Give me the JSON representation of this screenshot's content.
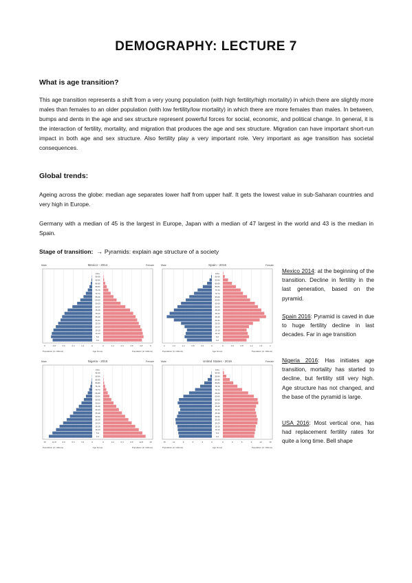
{
  "title": "DEMOGRAPHY: LECTURE 7",
  "section1": {
    "heading": "What is age transition?",
    "body": "This age transition represents a shift from a very young population (with high fertility/high mortality) in which there are slightly more males than females to an older population (with low fertility/low mortality) in which there are more females than males. In between, bumps and dents in the age and sex structure represent powerful forces for social, economic, and political change. In general, it is the interaction of fertility, mortality, and migration that produces the age and sex structure. Migration can have important short-run impact in both age and sex structure. Also fertility play a very important role. Very important as age transition has societal consequences."
  },
  "section2": {
    "heading": "Global trends:",
    "para1": "Ageing across the globe: median age separates lower half from upper half. It gets the lowest value in sub-Saharan countries and very high in Europe.",
    "para2": "Germany with a median of 45 is the largest in Europe, Japan with a median of 47 largest in the world and 43 is the median in Spain."
  },
  "stage": {
    "label": "Stage of transition:",
    "arrow": "→",
    "text": "Pyramids: explain age structure of a society"
  },
  "notes": [
    {
      "country": "Mexico 2014",
      "text": ": at the beginning of the transition. Decline in fertility in the last generation, based on the pyramid."
    },
    {
      "country": "Spain 2016",
      "text": ": Pyramid is caved in due to huge fertility decline in last decades. Far in age transition"
    },
    {
      "country": "Nigeria 2016",
      "text": ": Has initiates age transition, mortality has started to decline, but fertility still very high. Age structure has not changed, and the base of the pyramid is large."
    },
    {
      "country": "USA 2016",
      "text": ": Most vertical one, has had replacement fertility rates for quite a long time. Bell shape"
    }
  ],
  "colors": {
    "male": "#4a6d9e",
    "female": "#e8868c"
  },
  "chart_data": [
    {
      "type": "bar",
      "title": "Mexico - 2014",
      "male_label": "Male",
      "female_label": "Female",
      "xlabel_left": "Population (in millions)",
      "xlabel_center": "Age Group",
      "xlabel_right": "Population (in millions)",
      "xticks": [
        "6",
        "4.8",
        "3.6",
        "2.4",
        "1.2",
        "0",
        "0",
        "1.2",
        "2.4",
        "3.6",
        "4.8",
        "6"
      ],
      "xlim": [
        0,
        6
      ],
      "categories": [
        "100+",
        "95-99",
        "90-94",
        "85-89",
        "80-84",
        "75-79",
        "70-74",
        "65-69",
        "60-64",
        "55-59",
        "50-54",
        "45-49",
        "40-44",
        "35-39",
        "30-34",
        "25-29",
        "20-24",
        "15-19",
        "10-14",
        "5-9",
        "0-4"
      ],
      "male": [
        0.01,
        0.03,
        0.08,
        0.18,
        0.35,
        0.55,
        0.8,
        1.1,
        1.5,
        1.9,
        2.5,
        3.1,
        3.5,
        3.8,
        4.0,
        4.3,
        4.6,
        4.9,
        5.1,
        5.2,
        5.0
      ],
      "female": [
        0.02,
        0.05,
        0.12,
        0.25,
        0.45,
        0.65,
        0.95,
        1.3,
        1.7,
        2.2,
        2.8,
        3.4,
        3.8,
        4.1,
        4.3,
        4.5,
        4.7,
        4.9,
        5.0,
        5.1,
        4.9
      ]
    },
    {
      "type": "bar",
      "title": "Spain - 2016",
      "male_label": "Male",
      "female_label": "Female",
      "xlabel_left": "Population (in millions)",
      "xlabel_center": "Age Group",
      "xlabel_right": "Population (in millions)",
      "xticks": [
        "2",
        "1.6",
        "1.2",
        "0.8",
        "0.4",
        "0",
        "0",
        "0.4",
        "0.8",
        "1.2",
        "1.6",
        "2"
      ],
      "xlim": [
        0,
        2
      ],
      "categories": [
        "100+",
        "95-99",
        "90-94",
        "85-89",
        "80-84",
        "75-79",
        "70-74",
        "65-69",
        "60-64",
        "55-59",
        "50-54",
        "45-49",
        "40-44",
        "35-39",
        "30-34",
        "25-29",
        "20-24",
        "15-19",
        "10-14",
        "5-9",
        "0-4"
      ],
      "male": [
        0.005,
        0.03,
        0.1,
        0.2,
        0.38,
        0.6,
        0.75,
        0.95,
        1.1,
        1.3,
        1.45,
        1.6,
        1.78,
        1.9,
        1.6,
        1.3,
        1.15,
        1.05,
        1.1,
        1.15,
        1.05
      ],
      "female": [
        0.02,
        0.08,
        0.22,
        0.38,
        0.55,
        0.75,
        0.85,
        1.02,
        1.15,
        1.35,
        1.48,
        1.62,
        1.75,
        1.82,
        1.55,
        1.27,
        1.1,
        1.0,
        1.05,
        1.1,
        1.0
      ]
    },
    {
      "type": "bar",
      "title": "Nigeria - 2016",
      "male_label": "Male",
      "female_label": "Female",
      "xlabel_left": "Population (in millions)",
      "xlabel_center": "Age Group",
      "xlabel_right": "Population (in millions)",
      "xticks": [
        "16",
        "12.8",
        "9.6",
        "6.4",
        "3.2",
        "0",
        "0",
        "3.2",
        "6.4",
        "9.6",
        "12.8",
        "16"
      ],
      "xlim": [
        0,
        16
      ],
      "categories": [
        "100+",
        "95-99",
        "90-94",
        "85-89",
        "80-84",
        "75-79",
        "70-74",
        "65-69",
        "60-64",
        "55-59",
        "50-54",
        "45-49",
        "40-44",
        "35-39",
        "30-34",
        "25-29",
        "20-24",
        "15-19",
        "10-14",
        "5-9",
        "0-4"
      ],
      "male": [
        0.005,
        0.02,
        0.05,
        0.12,
        0.3,
        0.6,
        1.0,
        1.5,
        2.1,
        2.8,
        3.6,
        4.5,
        5.4,
        6.4,
        7.5,
        8.6,
        9.8,
        11.0,
        12.2,
        13.4,
        14.6
      ],
      "female": [
        0.005,
        0.02,
        0.06,
        0.14,
        0.33,
        0.65,
        1.05,
        1.55,
        2.1,
        2.75,
        3.5,
        4.4,
        5.3,
        6.3,
        7.4,
        8.5,
        9.6,
        10.8,
        12.0,
        13.2,
        14.3
      ]
    },
    {
      "type": "bar",
      "title": "United States - 2016",
      "male_label": "Male",
      "female_label": "Female",
      "xlabel_left": "Population (in millions)",
      "xlabel_center": "Age Group",
      "xlabel_right": "Population (in millions)",
      "xticks": [
        "15",
        "12",
        "9",
        "6",
        "3",
        "0",
        "0",
        "3",
        "6",
        "9",
        "12",
        "15"
      ],
      "xlim": [
        0,
        15
      ],
      "categories": [
        "100+",
        "95-99",
        "90-94",
        "85-89",
        "80-84",
        "75-79",
        "70-74",
        "65-69",
        "60-64",
        "55-59",
        "50-54",
        "45-49",
        "40-44",
        "35-39",
        "30-34",
        "25-29",
        "20-24",
        "15-19",
        "10-14",
        "5-9",
        "0-4"
      ],
      "male": [
        0.02,
        0.1,
        0.5,
        1.3,
        2.4,
        3.7,
        5.3,
        7.2,
        9.0,
        10.4,
        10.8,
        10.3,
        10.0,
        10.6,
        11.0,
        11.5,
        11.4,
        10.9,
        10.8,
        10.6,
        10.4
      ],
      "female": [
        0.07,
        0.35,
        1.1,
        2.2,
        3.3,
        4.6,
        6.1,
        8.0,
        9.8,
        11.0,
        11.2,
        10.5,
        10.2,
        10.5,
        10.7,
        11.0,
        10.9,
        10.4,
        10.3,
        10.1,
        9.9
      ]
    }
  ]
}
